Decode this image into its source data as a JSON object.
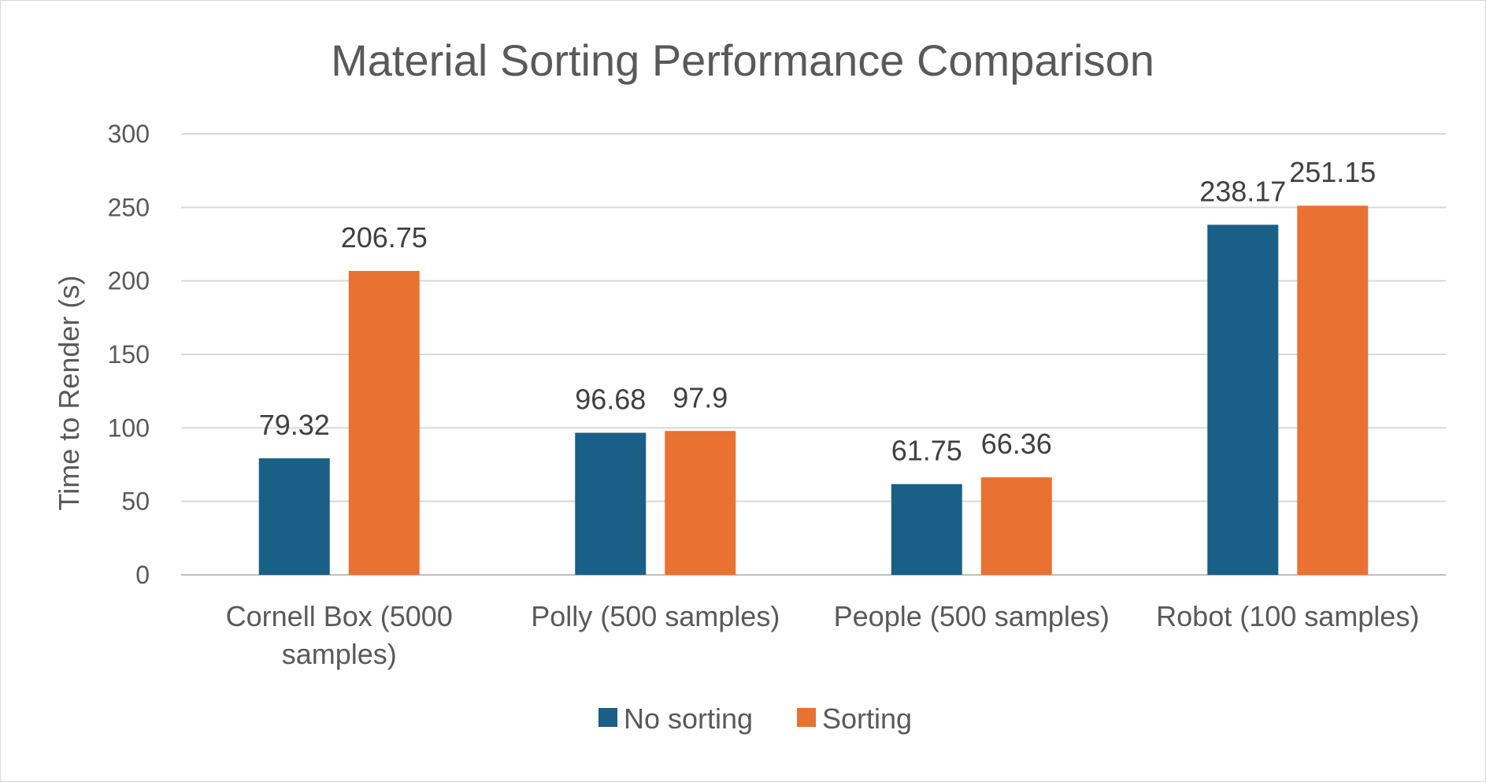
{
  "chart_data": {
    "type": "bar",
    "title": "Material Sorting Performance Comparison",
    "xlabel": "",
    "ylabel": "Time to Render (s)",
    "ylim": [
      0,
      300
    ],
    "yticks": [
      0,
      50,
      100,
      150,
      200,
      250,
      300
    ],
    "grid": true,
    "legend_position": "bottom",
    "categories": [
      [
        "Cornell Box (5000",
        "samples)"
      ],
      [
        "Polly (500 samples)"
      ],
      [
        "People (500 samples)"
      ],
      [
        "Robot (100 samples)"
      ]
    ],
    "series": [
      {
        "name": "No sorting",
        "color": "#1a5f86",
        "values": [
          79.32,
          96.68,
          61.75,
          238.17
        ]
      },
      {
        "name": "Sorting",
        "color": "#e97132",
        "values": [
          206.75,
          97.9,
          66.36,
          251.15
        ]
      }
    ]
  }
}
